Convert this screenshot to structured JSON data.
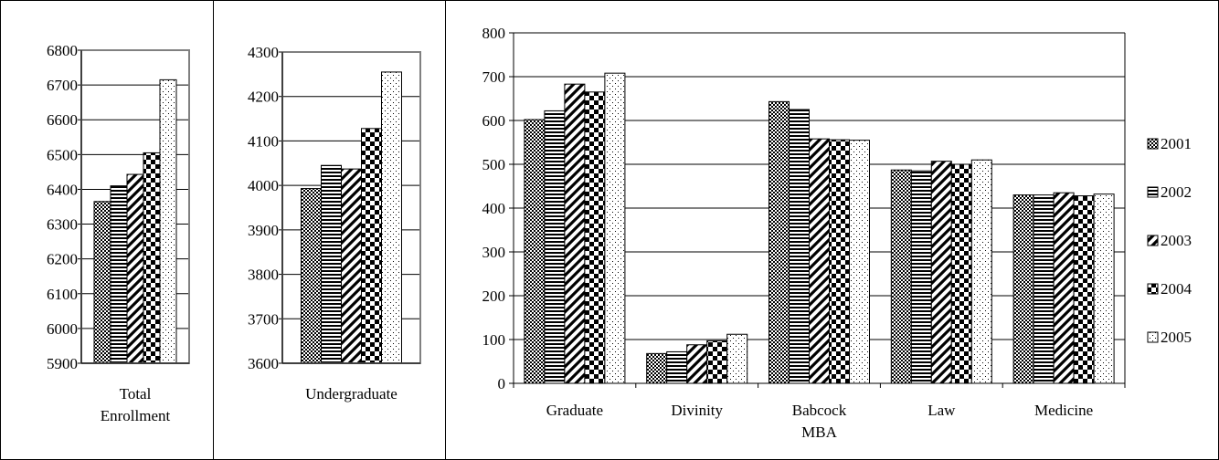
{
  "chart_data": [
    {
      "type": "bar",
      "categories": [
        "Total Enrollment"
      ],
      "category_label_lines": [
        [
          "Total",
          "Enrollment"
        ]
      ],
      "series": [
        {
          "name": "2001",
          "values": [
            6365
          ]
        },
        {
          "name": "2002",
          "values": [
            6410
          ]
        },
        {
          "name": "2003",
          "values": [
            6443
          ]
        },
        {
          "name": "2004",
          "values": [
            6505
          ]
        },
        {
          "name": "2005",
          "values": [
            6715
          ]
        }
      ],
      "ylim": [
        5900,
        6800
      ],
      "yticks": [
        5900,
        6000,
        6100,
        6200,
        6300,
        6400,
        6500,
        6600,
        6700,
        6800
      ],
      "grid": true
    },
    {
      "type": "bar",
      "categories": [
        "Undergraduate"
      ],
      "category_label_lines": [
        [
          "Undergraduate"
        ]
      ],
      "series": [
        {
          "name": "2001",
          "values": [
            3993
          ]
        },
        {
          "name": "2002",
          "values": [
            4045
          ]
        },
        {
          "name": "2003",
          "values": [
            4037
          ]
        },
        {
          "name": "2004",
          "values": [
            4128
          ]
        },
        {
          "name": "2005",
          "values": [
            4255
          ]
        }
      ],
      "ylim": [
        3600,
        4300
      ],
      "yticks": [
        3600,
        3700,
        3800,
        3900,
        4000,
        4100,
        4200,
        4300
      ],
      "grid": true
    },
    {
      "type": "bar",
      "categories": [
        "Graduate",
        "Divinity",
        "Babcock MBA",
        "Law",
        "Medicine"
      ],
      "category_label_lines": [
        [
          "Graduate"
        ],
        [
          "Divinity"
        ],
        [
          "Babcock",
          "MBA"
        ],
        [
          "Law"
        ],
        [
          "Medicine"
        ]
      ],
      "series": [
        {
          "name": "2001",
          "values": [
            602,
            68,
            643,
            487,
            430
          ]
        },
        {
          "name": "2002",
          "values": [
            622,
            72,
            625,
            485,
            430
          ]
        },
        {
          "name": "2003",
          "values": [
            683,
            88,
            558,
            507,
            435
          ]
        },
        {
          "name": "2004",
          "values": [
            665,
            97,
            556,
            500,
            428
          ]
        },
        {
          "name": "2005",
          "values": [
            708,
            112,
            555,
            510,
            432
          ]
        }
      ],
      "ylim": [
        0,
        800
      ],
      "yticks": [
        0,
        100,
        200,
        300,
        400,
        500,
        600,
        700,
        800
      ],
      "grid": true,
      "legend": "right"
    }
  ],
  "legend": {
    "entries": [
      "2001",
      "2002",
      "2003",
      "2004",
      "2005"
    ],
    "patterns": [
      "checker",
      "hlines",
      "diagonal",
      "bigchecker",
      "dots"
    ]
  }
}
